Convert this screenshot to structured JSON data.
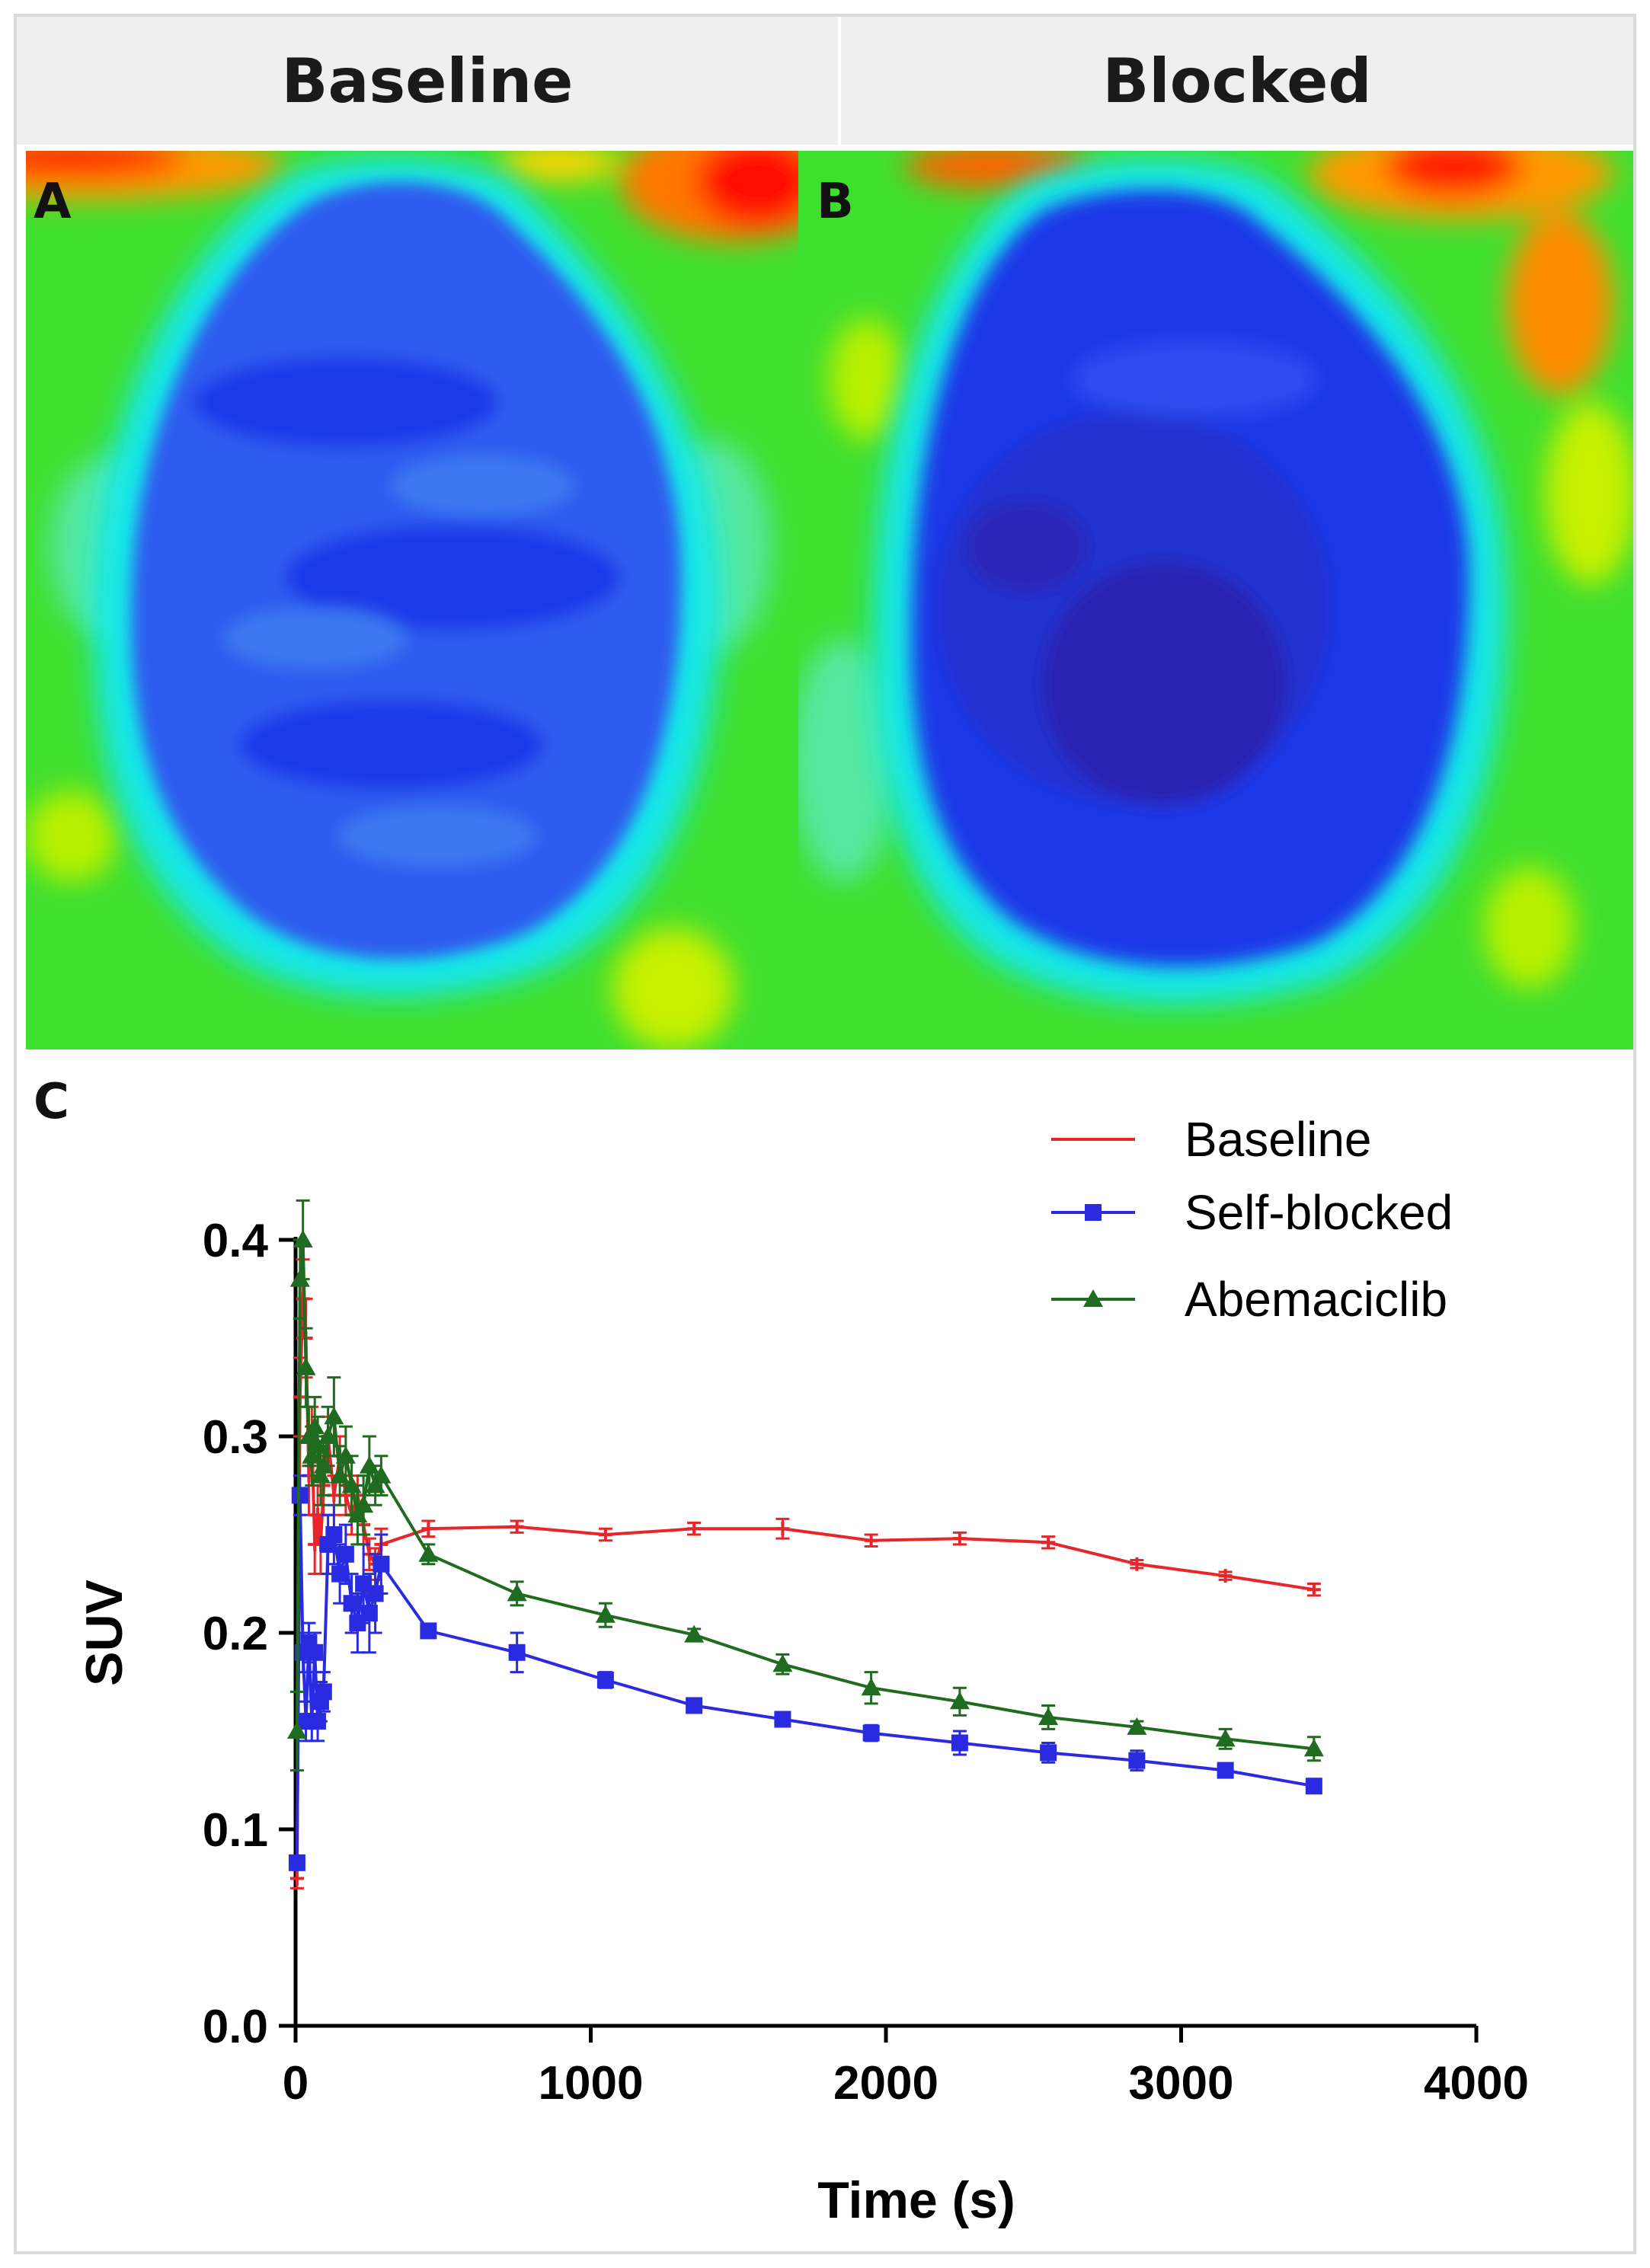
{
  "panels": {
    "baseline_title": "Baseline",
    "blocked_title": "Blocked",
    "label_a": "A",
    "label_b": "B",
    "label_c": "C"
  },
  "colors": {
    "baseline": "#e8262a",
    "self_blocked": "#2a2ae0",
    "abemaciclib": "#1f6b1f"
  },
  "chart_data": {
    "type": "line",
    "title": "",
    "xlabel": "Time (s)",
    "ylabel": "SUV",
    "xlim": [
      0,
      4000
    ],
    "ylim": [
      0.0,
      0.4
    ],
    "xticks": [
      "0",
      "1000",
      "2000",
      "3000",
      "4000"
    ],
    "yticks": [
      "0.0",
      "0.1",
      "0.2",
      "0.3",
      "0.4"
    ],
    "legend_position": "top-right",
    "series": [
      {
        "name": "Baseline",
        "color": "#e8262a",
        "marker": "plus",
        "x": [
          5,
          15,
          25,
          35,
          45,
          55,
          65,
          75,
          85,
          95,
          110,
          130,
          150,
          170,
          190,
          210,
          230,
          250,
          270,
          290,
          450,
          750,
          1050,
          1350,
          1650,
          1950,
          2250,
          2550,
          2850,
          3150,
          3450
        ],
        "y": [
          0.075,
          0.32,
          0.37,
          0.35,
          0.28,
          0.3,
          0.245,
          0.26,
          0.245,
          0.275,
          0.3,
          0.27,
          0.29,
          0.27,
          0.26,
          0.27,
          0.255,
          0.24,
          0.235,
          0.245,
          0.253,
          0.254,
          0.25,
          0.253,
          0.253,
          0.247,
          0.248,
          0.246,
          0.235,
          0.229,
          0.222
        ],
        "err": [
          0.005,
          0.02,
          0.02,
          0.02,
          0.02,
          0.015,
          0.015,
          0.015,
          0.015,
          0.015,
          0.01,
          0.01,
          0.01,
          0.01,
          0.01,
          0.01,
          0.01,
          0.008,
          0.008,
          0.008,
          0.004,
          0.003,
          0.003,
          0.003,
          0.005,
          0.003,
          0.003,
          0.003,
          0.002,
          0.002,
          0.003
        ]
      },
      {
        "name": "Self-blocked",
        "color": "#2a2ae0",
        "marker": "square",
        "x": [
          5,
          15,
          25,
          35,
          45,
          55,
          65,
          75,
          85,
          95,
          110,
          130,
          150,
          170,
          190,
          210,
          230,
          250,
          270,
          290,
          450,
          750,
          1050,
          1350,
          1650,
          1950,
          2250,
          2550,
          2850,
          3150,
          3450
        ],
        "y": [
          0.083,
          0.27,
          0.19,
          0.155,
          0.195,
          0.155,
          0.19,
          0.155,
          0.165,
          0.17,
          0.245,
          0.25,
          0.23,
          0.24,
          0.215,
          0.205,
          0.225,
          0.21,
          0.22,
          0.235,
          0.201,
          0.19,
          0.176,
          0.163,
          0.156,
          0.149,
          0.144,
          0.139,
          0.135,
          0.13,
          0.122
        ],
        "err": [
          0.003,
          0.01,
          0.01,
          0.01,
          0.01,
          0.01,
          0.01,
          0.01,
          0.01,
          0.01,
          0.015,
          0.015,
          0.015,
          0.015,
          0.015,
          0.015,
          0.02,
          0.02,
          0.02,
          0.015,
          0.003,
          0.01,
          0.004,
          0.003,
          0.003,
          0.004,
          0.006,
          0.005,
          0.005,
          0.003,
          0.002
        ]
      },
      {
        "name": "Abemaciclib",
        "color": "#1f6b1f",
        "marker": "triangle",
        "x": [
          5,
          15,
          25,
          35,
          45,
          55,
          65,
          75,
          85,
          95,
          110,
          130,
          150,
          170,
          190,
          210,
          230,
          250,
          270,
          290,
          450,
          750,
          1050,
          1350,
          1650,
          1950,
          2250,
          2550,
          2850,
          3150,
          3450
        ],
        "y": [
          0.15,
          0.38,
          0.4,
          0.335,
          0.3,
          0.29,
          0.305,
          0.295,
          0.28,
          0.285,
          0.3,
          0.31,
          0.28,
          0.29,
          0.275,
          0.26,
          0.265,
          0.285,
          0.275,
          0.28,
          0.24,
          0.22,
          0.209,
          0.199,
          0.184,
          0.172,
          0.165,
          0.157,
          0.152,
          0.146,
          0.141
        ],
        "err": [
          0.02,
          0.02,
          0.02,
          0.02,
          0.015,
          0.015,
          0.015,
          0.015,
          0.015,
          0.015,
          0.015,
          0.02,
          0.015,
          0.015,
          0.015,
          0.015,
          0.015,
          0.015,
          0.01,
          0.01,
          0.005,
          0.006,
          0.006,
          0.003,
          0.005,
          0.008,
          0.007,
          0.006,
          0.003,
          0.005,
          0.006
        ]
      }
    ]
  }
}
